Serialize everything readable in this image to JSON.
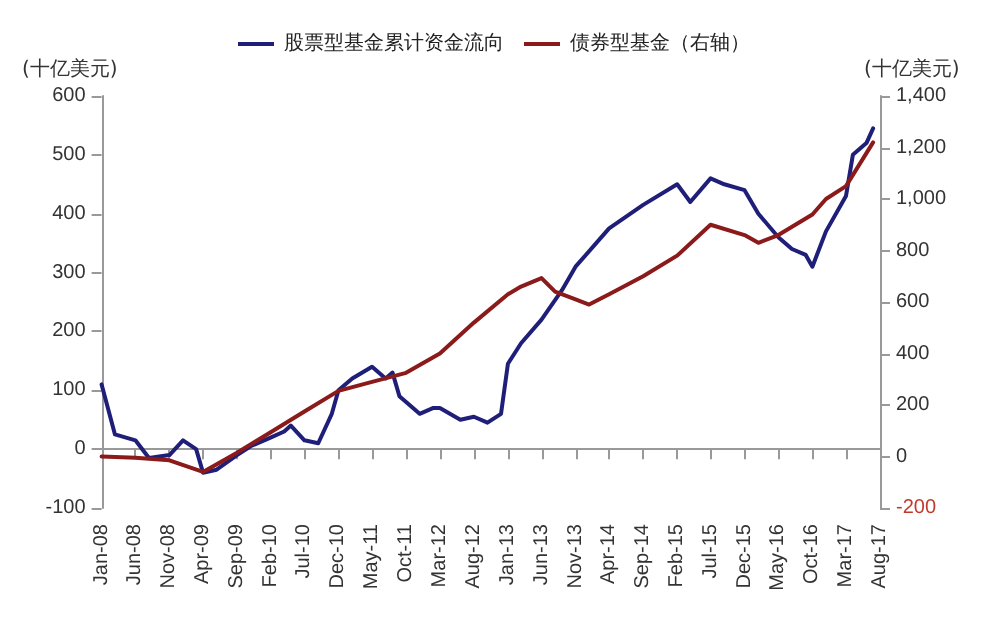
{
  "chart_data": {
    "type": "line",
    "ylabel": "(十亿美元)",
    "y2label": "(十亿美元)",
    "legend": "top",
    "marker": "none",
    "line_style": "solid",
    "xlim": [
      "2008-01",
      "2017-08"
    ],
    "xticks": [
      {
        "value": "2008-01",
        "label": "Jan-08"
      },
      {
        "value": "2008-06",
        "label": "Jun-08"
      },
      {
        "value": "2008-11",
        "label": "Nov-08"
      },
      {
        "value": "2009-04",
        "label": "Apr-09"
      },
      {
        "value": "2009-09",
        "label": "Sep-09"
      },
      {
        "value": "2010-02",
        "label": "Feb-10"
      },
      {
        "value": "2010-07",
        "label": "Jul-10"
      },
      {
        "value": "2010-12",
        "label": "Dec-10"
      },
      {
        "value": "2011-05",
        "label": "May-11"
      },
      {
        "value": "2011-10",
        "label": "Oct-11"
      },
      {
        "value": "2012-03",
        "label": "Mar-12"
      },
      {
        "value": "2012-08",
        "label": "Aug-12"
      },
      {
        "value": "2013-01",
        "label": "Jan-13"
      },
      {
        "value": "2013-06",
        "label": "Jun-13"
      },
      {
        "value": "2013-11",
        "label": "Nov-13"
      },
      {
        "value": "2014-04",
        "label": "Apr-14"
      },
      {
        "value": "2014-09",
        "label": "Sep-14"
      },
      {
        "value": "2015-02",
        "label": "Feb-15"
      },
      {
        "value": "2015-07",
        "label": "Jul-15"
      },
      {
        "value": "2015-12",
        "label": "Dec-15"
      },
      {
        "value": "2016-05",
        "label": "May-16"
      },
      {
        "value": "2016-10",
        "label": "Oct-16"
      },
      {
        "value": "2017-03",
        "label": "Mar-17"
      },
      {
        "value": "2017-08",
        "label": "Aug-17"
      }
    ],
    "ylim": [
      -100,
      600
    ],
    "yticks": [
      -100,
      0,
      100,
      200,
      300,
      400,
      500,
      600
    ],
    "y2lim": [
      -200,
      1400
    ],
    "y2ticks": [
      -200,
      0,
      {
        "value": 200,
        "label": "200"
      },
      {
        "value": 400,
        "label": "400"
      },
      {
        "value": 600,
        "label": "600"
      },
      {
        "value": 800,
        "label": "800"
      },
      {
        "value": 1000,
        "label": "1,000"
      },
      {
        "value": 1200,
        "label": "1,200"
      },
      {
        "value": 1400,
        "label": "1,400"
      }
    ],
    "series": [
      {
        "name": "股票型基金累计资金流向",
        "color": "#1f1f7a",
        "x": [
          "2008-01",
          "2008-03",
          "2008-06",
          "2008-08",
          "2008-11",
          "2009-01",
          "2009-03",
          "2009-04",
          "2009-06",
          "2009-09",
          "2009-11",
          "2010-02",
          "2010-04",
          "2010-05",
          "2010-07",
          "2010-09",
          "2010-11",
          "2010-12",
          "2011-02",
          "2011-05",
          "2011-07",
          "2011-08",
          "2011-09",
          "2011-10",
          "2011-12",
          "2012-02",
          "2012-03",
          "2012-06",
          "2012-08",
          "2012-10",
          "2012-12",
          "2013-01",
          "2013-03",
          "2013-06",
          "2013-09",
          "2013-11",
          "2014-04",
          "2014-09",
          "2015-02",
          "2015-04",
          "2015-07",
          "2015-09",
          "2015-12",
          "2016-02",
          "2016-05",
          "2016-07",
          "2016-09",
          "2016-10",
          "2016-12",
          "2017-03",
          "2017-04",
          "2017-06",
          "2017-07"
        ],
        "values": [
          110,
          25,
          15,
          -15,
          -10,
          15,
          0,
          -40,
          -35,
          -10,
          5,
          20,
          30,
          40,
          15,
          10,
          60,
          100,
          120,
          140,
          120,
          130,
          90,
          80,
          60,
          70,
          70,
          50,
          55,
          45,
          60,
          145,
          180,
          220,
          270,
          310,
          375,
          415,
          450,
          420,
          460,
          450,
          440,
          400,
          360,
          340,
          330,
          310,
          370,
          430,
          500,
          520,
          545
        ]
      },
      {
        "name": "债券型基金（右轴）",
        "color": "#8b1a1a",
        "axis": "y2",
        "x": [
          "2008-01",
          "2008-06",
          "2008-11",
          "2009-04",
          "2009-09",
          "2010-02",
          "2010-07",
          "2010-12",
          "2011-05",
          "2011-10",
          "2012-03",
          "2012-08",
          "2013-01",
          "2013-03",
          "2013-06",
          "2013-08",
          "2013-11",
          "2014-01",
          "2014-04",
          "2014-09",
          "2015-02",
          "2015-07",
          "2015-12",
          "2016-02",
          "2016-05",
          "2016-10",
          "2016-12",
          "2017-03",
          "2017-07"
        ],
        "values": [
          0,
          -5,
          -15,
          -60,
          15,
          95,
          175,
          255,
          290,
          325,
          400,
          520,
          630,
          660,
          693,
          640,
          610,
          590,
          630,
          700,
          780,
          900,
          860,
          830,
          860,
          940,
          1000,
          1050,
          1220
        ]
      }
    ]
  }
}
